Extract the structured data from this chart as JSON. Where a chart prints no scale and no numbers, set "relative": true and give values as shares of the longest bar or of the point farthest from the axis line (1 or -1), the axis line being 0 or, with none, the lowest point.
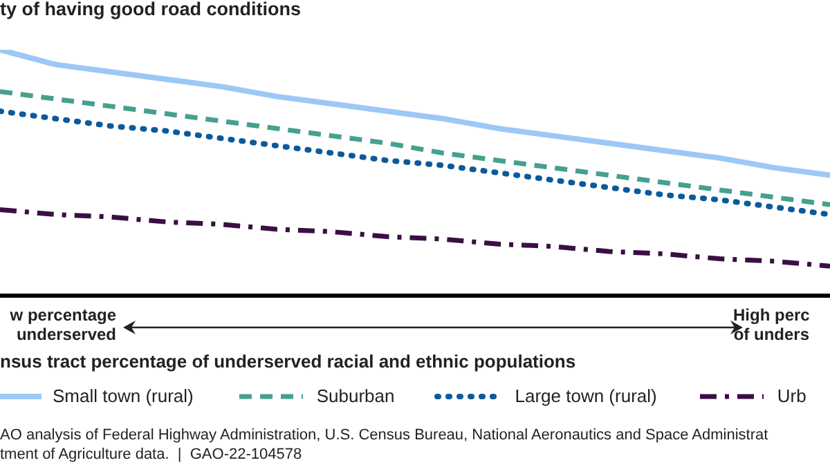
{
  "chart_data": {
    "type": "line",
    "relative": true,
    "ylabel": "ty of having good road conditions",
    "xlabel": "nsus tract percentage of underserved racial and ethnic populations",
    "categories": [
      null,
      null,
      null,
      null,
      null,
      null,
      null,
      null,
      null,
      null,
      null,
      null,
      null,
      null,
      null,
      null
    ],
    "series": [
      {
        "name": "Small town (rural)",
        "color": "#9dc8f5",
        "line_style": "solid",
        "values": [
          1.0,
          0.94,
          0.91,
          0.88,
          0.85,
          0.81,
          0.78,
          0.75,
          0.72,
          0.68,
          0.65,
          0.62,
          0.59,
          0.56,
          0.52,
          0.49
        ]
      },
      {
        "name": "Suburban",
        "color": "#45a08f",
        "line_style": "dashed",
        "values": [
          0.83,
          0.8,
          0.77,
          0.74,
          0.71,
          0.68,
          0.65,
          0.62,
          0.58,
          0.55,
          0.52,
          0.49,
          0.46,
          0.43,
          0.4,
          0.37
        ]
      },
      {
        "name": "Large town (rural)",
        "color": "#0b5a9c",
        "line_style": "dotted",
        "values": [
          0.75,
          0.72,
          0.69,
          0.67,
          0.64,
          0.61,
          0.58,
          0.55,
          0.53,
          0.5,
          0.47,
          0.44,
          0.41,
          0.39,
          0.36,
          0.33
        ]
      },
      {
        "name": "Urb",
        "color": "#3a0f43",
        "line_style": "dashdot",
        "values": [
          0.35,
          0.33,
          0.32,
          0.3,
          0.29,
          0.27,
          0.26,
          0.24,
          0.23,
          0.21,
          0.2,
          0.18,
          0.17,
          0.15,
          0.14,
          0.12
        ]
      }
    ],
    "legend": "bottom",
    "grid": false,
    "marker": "none",
    "annotations": [
      "w percentage\nunderserved",
      "High perc\nof unders",
      "AO analysis of Federal Highway Administration, U.S. Census Bureau, National Aeronautics and Space Administrat\ntment of Agriculture data.  |  GAO-22-104578"
    ]
  }
}
